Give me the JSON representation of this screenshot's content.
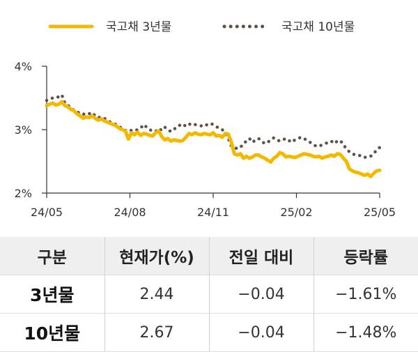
{
  "chart_data": {
    "type": "line",
    "x_labels": [
      "24/05",
      "24/08",
      "24/11",
      "25/02",
      "25/05"
    ],
    "yticks": [
      "4%",
      "3%",
      "2%"
    ],
    "ylim": [
      2,
      4
    ],
    "legend_position": "top",
    "grid": false,
    "series": [
      {
        "name": "국고채 3년물",
        "color": "#f5b800",
        "style": "solid",
        "values": [
          3.38,
          3.4,
          3.42,
          3.39,
          3.4,
          3.44,
          3.38,
          3.36,
          3.32,
          3.3,
          3.25,
          3.22,
          3.18,
          3.2,
          3.19,
          3.22,
          3.18,
          3.15,
          3.17,
          3.14,
          3.12,
          3.1,
          3.08,
          3.06,
          3.02,
          3.0,
          2.98,
          2.85,
          2.95,
          2.92,
          2.96,
          2.91,
          2.94,
          2.93,
          2.91,
          2.9,
          2.95,
          2.98,
          2.89,
          2.84,
          2.86,
          2.82,
          2.84,
          2.83,
          2.82,
          2.83,
          2.88,
          2.94,
          2.92,
          2.95,
          2.93,
          2.92,
          2.94,
          2.93,
          2.92,
          2.95,
          2.9,
          2.91,
          2.88,
          2.94,
          2.93,
          2.8,
          2.62,
          2.6,
          2.62,
          2.55,
          2.58,
          2.55,
          2.57,
          2.6,
          2.6,
          2.57,
          2.55,
          2.52,
          2.49,
          2.55,
          2.58,
          2.64,
          2.62,
          2.57,
          2.58,
          2.57,
          2.56,
          2.58,
          2.6,
          2.62,
          2.61,
          2.6,
          2.58,
          2.57,
          2.58,
          2.55,
          2.57,
          2.58,
          2.6,
          2.58,
          2.62,
          2.61,
          2.55,
          2.5,
          2.38,
          2.35,
          2.33,
          2.32,
          2.3,
          2.28,
          2.3,
          2.26,
          2.31,
          2.35,
          2.36
        ]
      },
      {
        "name": "국고채 10년물",
        "color": "#5e5248",
        "style": "dotted",
        "values": [
          3.46,
          3.48,
          3.5,
          3.5,
          3.52,
          3.55,
          3.42,
          3.38,
          3.36,
          3.3,
          3.28,
          3.26,
          3.24,
          3.26,
          3.25,
          3.27,
          3.22,
          3.19,
          3.2,
          3.18,
          3.15,
          3.12,
          3.1,
          3.08,
          3.05,
          3.01,
          2.99,
          2.97,
          2.99,
          2.98,
          3.0,
          3.02,
          3.08,
          3.04,
          3.0,
          2.98,
          2.97,
          3.02,
          2.99,
          3.04,
          3.0,
          2.97,
          3.0,
          3.05,
          3.07,
          3.09,
          3.05,
          3.08,
          3.1,
          3.08,
          3.07,
          3.06,
          3.05,
          3.08,
          3.1,
          3.08,
          3.05,
          3.02,
          3.0,
          2.95,
          2.86,
          2.74,
          2.72,
          2.7,
          2.72,
          2.78,
          2.82,
          2.86,
          2.8,
          2.84,
          2.86,
          2.82,
          2.78,
          2.8,
          2.84,
          2.87,
          2.84,
          2.82,
          2.84,
          2.86,
          2.83,
          2.8,
          2.84,
          2.86,
          2.88,
          2.86,
          2.83,
          2.8,
          2.77,
          2.74,
          2.74,
          2.76,
          2.78,
          2.8,
          2.82,
          2.78,
          2.82,
          2.83,
          2.76,
          2.7,
          2.65,
          2.62,
          2.6,
          2.6,
          2.58,
          2.56,
          2.58,
          2.58,
          2.62,
          2.68,
          2.72
        ]
      }
    ]
  },
  "table": {
    "headers": [
      "구분",
      "현재가(%)",
      "전일 대비",
      "등락률"
    ],
    "rows": [
      [
        "3년물",
        "2.44",
        "−0.04",
        "−1.61%"
      ],
      [
        "10년물",
        "2.67",
        "−0.04",
        "−1.48%"
      ]
    ]
  }
}
